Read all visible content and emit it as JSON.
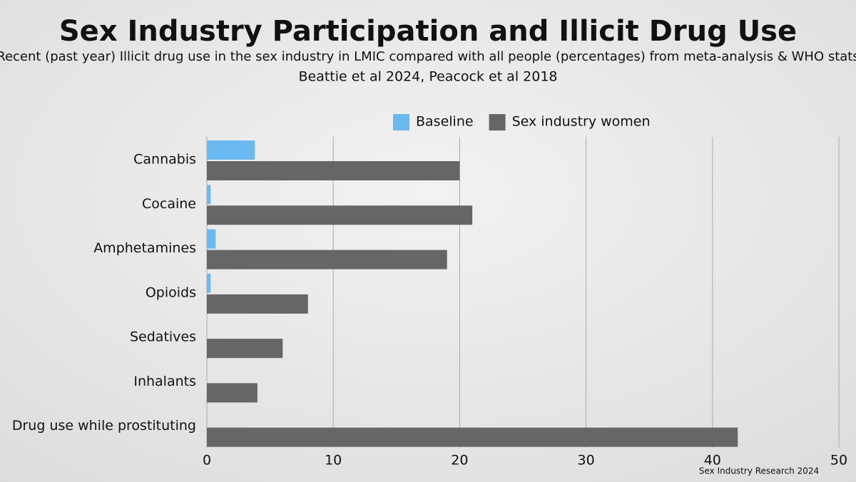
{
  "chart_data": {
    "type": "barh",
    "title": "Sex Industry Participation and Illicit Drug Use",
    "subtitles": [
      "Recent (past year) Illicit drug use in the sex industry in LMIC compared with all people (percentages) from meta-analysis & WHO stats",
      "Beattie et al 2024, Peacock et al 2018"
    ],
    "footnote": "Sex Industry Research 2024",
    "categories": [
      "Cannabis",
      "Cocaine",
      "Amphetamines",
      "Opioids",
      "Sedatives",
      "Inhalants",
      "Drug use while prostituting"
    ],
    "series": [
      {
        "name": "Baseline",
        "color": "#6bb9f0",
        "values": [
          3.8,
          0.3,
          0.7,
          0.3,
          null,
          null,
          null
        ]
      },
      {
        "name": "Sex industry women",
        "color": "#666666",
        "values": [
          20,
          21,
          19,
          8,
          6,
          4,
          42
        ]
      }
    ],
    "xlim": [
      0,
      50
    ],
    "xticks": [
      0,
      10,
      20,
      30,
      40,
      50
    ],
    "grid": true,
    "legend": "top"
  }
}
